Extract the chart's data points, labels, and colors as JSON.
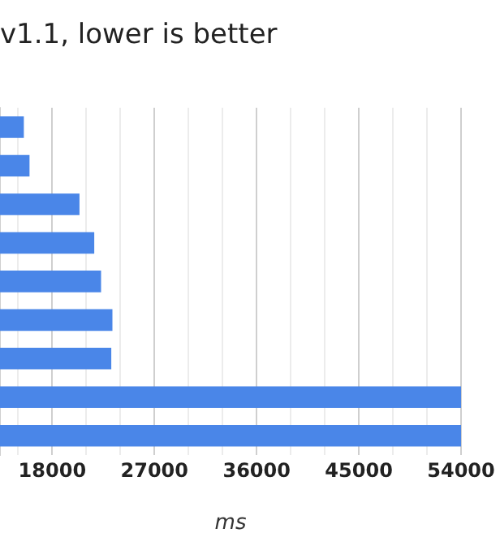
{
  "chart_data": {
    "type": "bar",
    "orientation": "horizontal",
    "title": "v1.1, lower is better",
    "xlabel": "ms",
    "categories": [
      null,
      null,
      null,
      null,
      null,
      null,
      null,
      null,
      null
    ],
    "values": [
      15500,
      16000,
      20400,
      21700,
      22300,
      23300,
      23200,
      54000,
      54000
    ],
    "color": "#4a86e8",
    "xlim": [
      13400,
      54000
    ],
    "xticks": [
      {
        "value": 15000,
        "label": null
      },
      18000,
      {
        "value": 21000,
        "label": null
      },
      {
        "value": 24000,
        "label": null
      },
      27000,
      {
        "value": 30000,
        "label": null
      },
      {
        "value": 33000,
        "label": null
      },
      36000,
      {
        "value": 39000,
        "label": null
      },
      {
        "value": 42000,
        "label": null
      },
      45000,
      {
        "value": 48000,
        "label": null
      },
      {
        "value": 51000,
        "label": null
      },
      54000
    ],
    "grid": true,
    "legend": false
  }
}
